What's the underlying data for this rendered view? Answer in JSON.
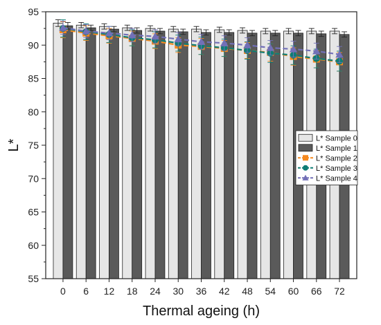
{
  "chart_data": {
    "type": "bar",
    "title": "",
    "xlabel": "Thermal ageing (h)",
    "ylabel": "L*",
    "ylim": [
      55,
      95
    ],
    "yticks": [
      55,
      60,
      65,
      70,
      75,
      80,
      85,
      90,
      95
    ],
    "categories": [
      "0",
      "6",
      "12",
      "18",
      "24",
      "30",
      "36",
      "42",
      "48",
      "54",
      "60",
      "66",
      "72"
    ],
    "legend_position": "right-center",
    "grid": false,
    "bar_series": [
      {
        "name": "L* Sample 0",
        "color": "#e6e6e6",
        "values": [
          93.3,
          93.0,
          92.8,
          92.6,
          92.5,
          92.4,
          92.4,
          92.3,
          92.2,
          92.1,
          92.1,
          92.1,
          92.1
        ],
        "errors": [
          0.5,
          0.4,
          0.4,
          0.4,
          0.4,
          0.4,
          0.4,
          0.4,
          0.4,
          0.4,
          0.4,
          0.4,
          0.4
        ]
      },
      {
        "name": "L* Sample 1",
        "color": "#5a5a5a",
        "values": [
          92.9,
          92.6,
          92.4,
          92.2,
          92.1,
          92.0,
          91.9,
          91.9,
          91.8,
          91.8,
          91.8,
          91.7,
          91.6
        ],
        "errors": [
          0.5,
          0.4,
          0.4,
          0.4,
          0.4,
          0.4,
          0.4,
          0.4,
          0.4,
          0.4,
          0.4,
          0.4,
          0.4
        ]
      }
    ],
    "line_series": [
      {
        "name": "L* Sample 2",
        "color": "#f5891f",
        "marker": "square",
        "values": [
          92.3,
          91.8,
          91.4,
          91.0,
          90.6,
          90.0,
          89.8,
          89.5,
          89.2,
          88.9,
          88.3,
          87.9,
          87.5
        ],
        "errors": [
          1.2,
          1.1,
          1.1,
          1.1,
          1.1,
          1.1,
          1.2,
          1.2,
          1.2,
          1.3,
          1.3,
          1.3,
          1.4
        ]
      },
      {
        "name": "L* Sample 3",
        "color": "#0f7d75",
        "marker": "circle",
        "values": [
          92.5,
          92.0,
          91.6,
          91.1,
          90.8,
          90.3,
          89.9,
          89.6,
          89.2,
          88.8,
          88.5,
          88.0,
          87.6
        ],
        "errors": [
          1.3,
          1.2,
          1.2,
          1.2,
          1.2,
          1.2,
          1.3,
          1.3,
          1.3,
          1.4,
          1.4,
          1.4,
          1.5
        ]
      },
      {
        "name": "L* Sample 4",
        "color": "#7270b7",
        "marker": "triangle",
        "values": [
          92.6,
          92.1,
          91.8,
          91.5,
          91.3,
          90.9,
          90.5,
          90.3,
          90.0,
          89.6,
          89.4,
          89.1,
          88.6
        ],
        "errors": [
          1.0,
          1.0,
          1.0,
          1.0,
          1.0,
          1.0,
          1.1,
          1.1,
          1.1,
          1.1,
          1.2,
          1.2,
          1.2
        ]
      }
    ]
  }
}
